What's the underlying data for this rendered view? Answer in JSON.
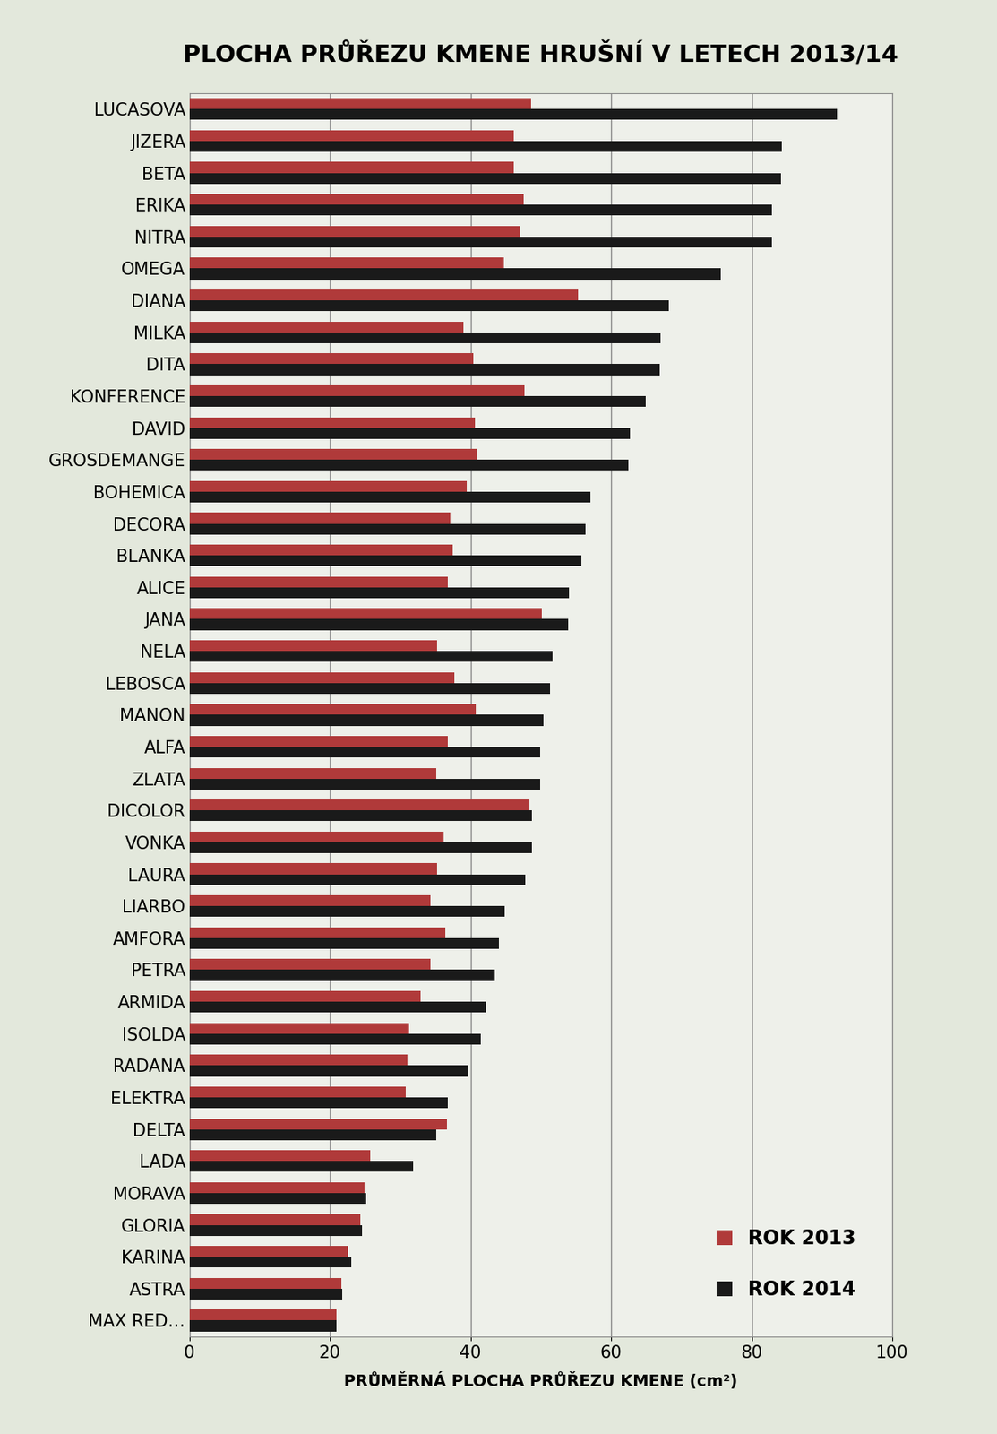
{
  "chart_data": {
    "type": "bar",
    "orientation": "horizontal",
    "title": "PLOCHA PRŮŘEZU KMENE HRUŠNÍ V LETECH 2013/14",
    "x_label": "PRŮMĚRNÁ PLOCHA PRŮŘEZU KMENE (cm²)",
    "categories": [
      "LUCASOVA",
      "JIZERA",
      "BETA",
      "ERIKA",
      "NITRA",
      "OMEGA",
      "DIANA",
      "MILKA",
      "DITA",
      "KONFERENCE",
      "DAVID",
      "GROSDEMANGE",
      "BOHEMICA",
      "DECORA",
      "BLANKA",
      "ALICE",
      "JANA",
      "NELA",
      "LEBOSCA",
      "MANON",
      "ALFA",
      "ZLATA",
      "DICOLOR",
      "VONKA",
      "LAURA",
      "LIARBO",
      "AMFORA",
      "PETRA",
      "ARMIDA",
      "ISOLDA",
      "RADANA",
      "ELEKTRA",
      "DELTA",
      "LADA",
      "MORAVA",
      "GLORIA",
      "KARINA",
      "ASTRA",
      "MAX RED…"
    ],
    "series": [
      {
        "name": "ROK 2013",
        "color": "#b03a3a",
        "values": [
          48.6,
          46.1,
          46.2,
          47.5,
          47.1,
          44.7,
          55.3,
          39.0,
          40.4,
          47.7,
          40.6,
          40.9,
          39.5,
          37.1,
          37.5,
          36.8,
          50.1,
          35.2,
          37.7,
          40.8,
          36.8,
          35.1,
          48.4,
          36.2,
          35.2,
          34.3,
          36.4,
          34.3,
          32.9,
          31.2,
          31.0,
          30.8,
          36.6,
          25.7,
          24.9,
          24.3,
          22.6,
          21.6,
          20.9
        ]
      },
      {
        "name": "ROK 2014",
        "color": "#1a1a1a",
        "values": [
          92.1,
          84.3,
          84.2,
          82.9,
          82.9,
          75.6,
          68.2,
          67.0,
          66.9,
          64.9,
          62.7,
          62.5,
          57.1,
          56.4,
          55.8,
          54.0,
          53.9,
          51.7,
          51.3,
          50.4,
          49.9,
          49.9,
          48.7,
          48.7,
          47.8,
          44.9,
          44.0,
          43.4,
          42.2,
          41.4,
          39.7,
          36.8,
          35.1,
          31.8,
          25.1,
          24.5,
          23.0,
          21.7,
          20.9
        ]
      }
    ],
    "xlim": [
      0,
      100
    ],
    "xticks": [
      0,
      20,
      40,
      60,
      80,
      100
    ],
    "grid": true,
    "legend": "lower right"
  }
}
